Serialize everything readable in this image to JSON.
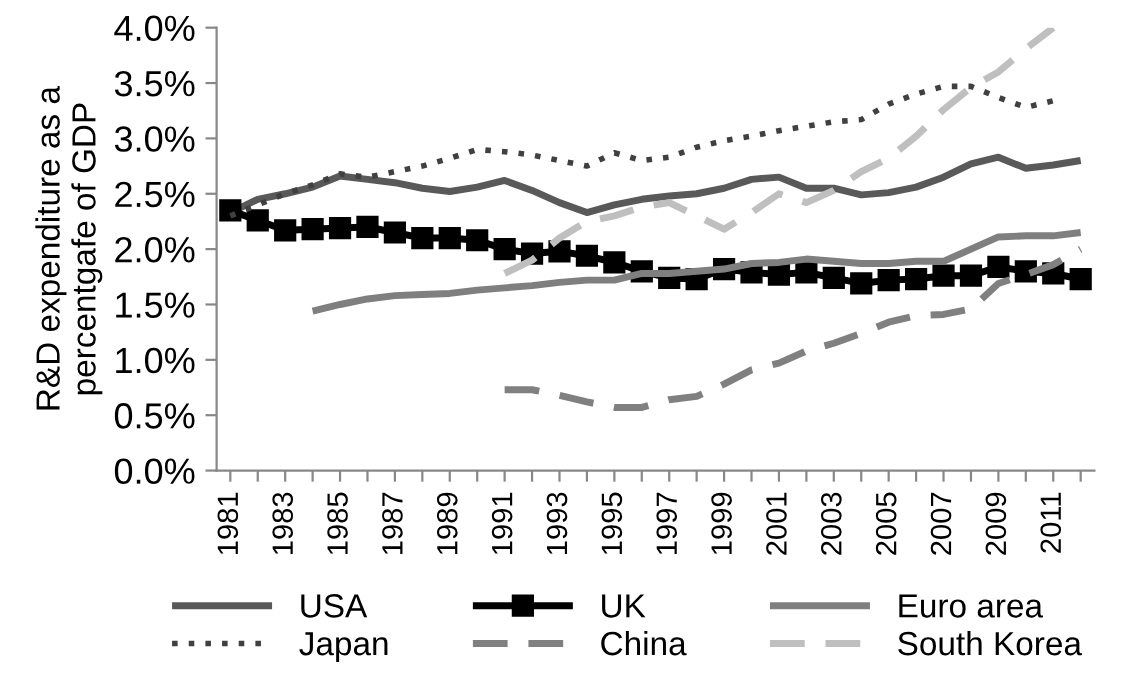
{
  "chart_data": {
    "type": "line",
    "ylabel": "R&D expenditure as a percentgafe of GDP",
    "categories": [
      "1981",
      null,
      "1983",
      null,
      "1985",
      null,
      "1987",
      null,
      "1989",
      null,
      "1991",
      null,
      "1993",
      null,
      "1995",
      null,
      "1997",
      null,
      "1999",
      null,
      "2001",
      null,
      "2003",
      null,
      "2005",
      null,
      "2007",
      null,
      "2009",
      null,
      "2011",
      null
    ],
    "ylim": [
      0,
      4
    ],
    "yticks": [
      {
        "value": 0,
        "label": "0.0%"
      },
      {
        "value": 0.5,
        "label": "0.5%"
      },
      {
        "value": 1,
        "label": "1.0%"
      },
      {
        "value": 1.5,
        "label": "1.5%"
      },
      {
        "value": 2,
        "label": "2.0%"
      },
      {
        "value": 2.5,
        "label": "2.5%"
      },
      {
        "value": 3,
        "label": "3.0%"
      },
      {
        "value": 3.5,
        "label": "3.5%"
      },
      {
        "value": 4,
        "label": "4.0%"
      }
    ],
    "grid": false,
    "legend": "bottom",
    "series": [
      {
        "name": "USA",
        "color": "#595959",
        "line_style": "solid",
        "marker": "none",
        "values": [
          2.33,
          2.45,
          2.5,
          2.56,
          2.66,
          2.63,
          2.6,
          2.55,
          2.52,
          2.56,
          2.62,
          2.53,
          2.42,
          2.33,
          2.4,
          2.45,
          2.48,
          2.5,
          2.55,
          2.63,
          2.65,
          2.55,
          2.55,
          2.49,
          2.51,
          2.56,
          2.65,
          2.77,
          2.83,
          2.73,
          2.76,
          2.8
        ]
      },
      {
        "name": "UK",
        "color": "#000000",
        "line_style": "solid",
        "marker": "square",
        "values": [
          2.35,
          2.26,
          2.17,
          2.18,
          2.19,
          2.2,
          2.15,
          2.1,
          2.1,
          2.08,
          2.0,
          1.96,
          1.98,
          1.94,
          1.88,
          1.8,
          1.74,
          1.73,
          1.82,
          1.79,
          1.77,
          1.79,
          1.74,
          1.69,
          1.72,
          1.73,
          1.76,
          1.76,
          1.84,
          1.8,
          1.78,
          1.73
        ]
      },
      {
        "name": "Euro area",
        "color": "#7f7f7f",
        "line_style": "solid",
        "marker": "none",
        "values": [
          null,
          null,
          null,
          1.44,
          1.5,
          1.55,
          1.58,
          1.59,
          1.6,
          1.63,
          1.65,
          1.67,
          1.7,
          1.72,
          1.72,
          1.78,
          1.78,
          1.8,
          1.82,
          1.87,
          1.88,
          1.91,
          1.89,
          1.87,
          1.87,
          1.89,
          1.89,
          2.0,
          2.11,
          2.12,
          2.12,
          2.15
        ]
      },
      {
        "name": "Japan",
        "color": "#404040",
        "line_style": "dotted",
        "marker": "none",
        "values": [
          2.3,
          2.4,
          2.5,
          2.58,
          2.68,
          2.65,
          2.7,
          2.75,
          2.82,
          2.9,
          2.88,
          2.85,
          2.8,
          2.75,
          2.87,
          2.8,
          2.83,
          2.92,
          2.98,
          3.02,
          3.07,
          3.11,
          3.15,
          3.17,
          3.31,
          3.4,
          3.47,
          3.47,
          3.37,
          3.28,
          3.34,
          null
        ]
      },
      {
        "name": "China",
        "color": "#808080",
        "line_style": "dashed",
        "marker": "none",
        "values": [
          null,
          null,
          null,
          null,
          null,
          null,
          null,
          null,
          null,
          null,
          0.73,
          0.73,
          0.68,
          0.62,
          0.57,
          0.57,
          0.64,
          0.67,
          0.78,
          0.91,
          0.97,
          1.08,
          1.15,
          1.24,
          1.34,
          1.4,
          1.41,
          1.46,
          1.69,
          1.77,
          1.86,
          2.0
        ]
      },
      {
        "name": "South Korea",
        "color": "#bfbfbf",
        "line_style": "dashed",
        "marker": "none",
        "values": [
          null,
          null,
          null,
          null,
          null,
          null,
          null,
          null,
          null,
          null,
          1.78,
          1.9,
          2.1,
          2.25,
          2.3,
          2.38,
          2.42,
          2.3,
          2.18,
          2.33,
          2.5,
          2.42,
          2.53,
          2.7,
          2.82,
          3.02,
          3.26,
          3.46,
          3.6,
          3.81,
          4.0,
          null
        ]
      }
    ]
  }
}
